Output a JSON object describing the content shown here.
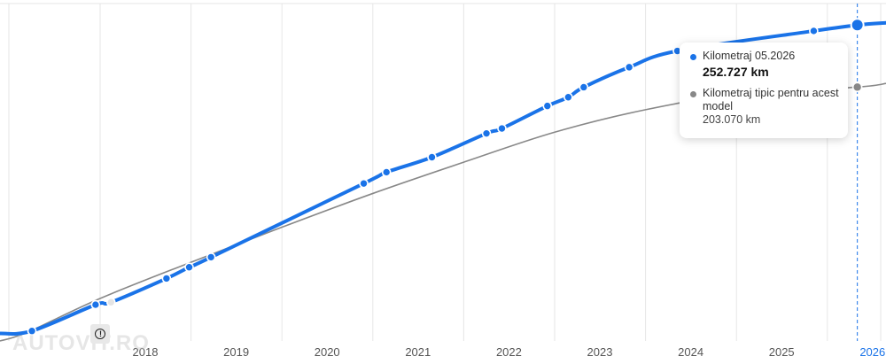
{
  "chart_data": {
    "type": "line",
    "x_tick_labels": [
      "2018",
      "2019",
      "2020",
      "2021",
      "2022",
      "2023",
      "2024",
      "2025",
      "2026"
    ],
    "active_tick": "2026",
    "series": [
      {
        "name": "Kilometraj",
        "color": "#1a73e8",
        "points": [
          {
            "x": 2017.25,
            "y": 8000
          },
          {
            "x": 2017.95,
            "y": 29000
          },
          {
            "x": 2018.12,
            "y": 31000
          },
          {
            "x": 2018.73,
            "y": 50000
          },
          {
            "x": 2018.98,
            "y": 59000
          },
          {
            "x": 2019.22,
            "y": 67000
          },
          {
            "x": 2020.9,
            "y": 126000
          },
          {
            "x": 2021.15,
            "y": 135000
          },
          {
            "x": 2021.65,
            "y": 147000
          },
          {
            "x": 2022.25,
            "y": 166000
          },
          {
            "x": 2022.42,
            "y": 170000
          },
          {
            "x": 2022.92,
            "y": 188000
          },
          {
            "x": 2023.15,
            "y": 195000
          },
          {
            "x": 2023.32,
            "y": 203000
          },
          {
            "x": 2023.82,
            "y": 219000
          },
          {
            "x": 2024.35,
            "y": 232000
          },
          {
            "x": 2025.85,
            "y": 248000
          },
          {
            "x": 2026.33,
            "y": 252727
          }
        ],
        "warning_point_x": 2018.12
      },
      {
        "name": "Kilometraj tipic pentru acest model",
        "color": "#888888",
        "points": [
          {
            "x": 2017.2,
            "y": 7000
          },
          {
            "x": 2018.0,
            "y": 34000
          },
          {
            "x": 2019.0,
            "y": 63000
          },
          {
            "x": 2020.0,
            "y": 91000
          },
          {
            "x": 2021.0,
            "y": 118000
          },
          {
            "x": 2022.0,
            "y": 143000
          },
          {
            "x": 2023.0,
            "y": 167000
          },
          {
            "x": 2024.0,
            "y": 185000
          },
          {
            "x": 2025.0,
            "y": 197000
          },
          {
            "x": 2026.33,
            "y": 203070
          }
        ]
      }
    ],
    "tooltip": {
      "primary_label": "Kilometraj 05.2026",
      "primary_value": "252.727 km",
      "secondary_label": "Kilometraj tipic pentru acest model",
      "secondary_value": "203.070 km"
    },
    "warning_icon": "exclamation-circle-icon",
    "watermark": "AUTOVIT.RO",
    "grid": true,
    "legend": "none"
  }
}
